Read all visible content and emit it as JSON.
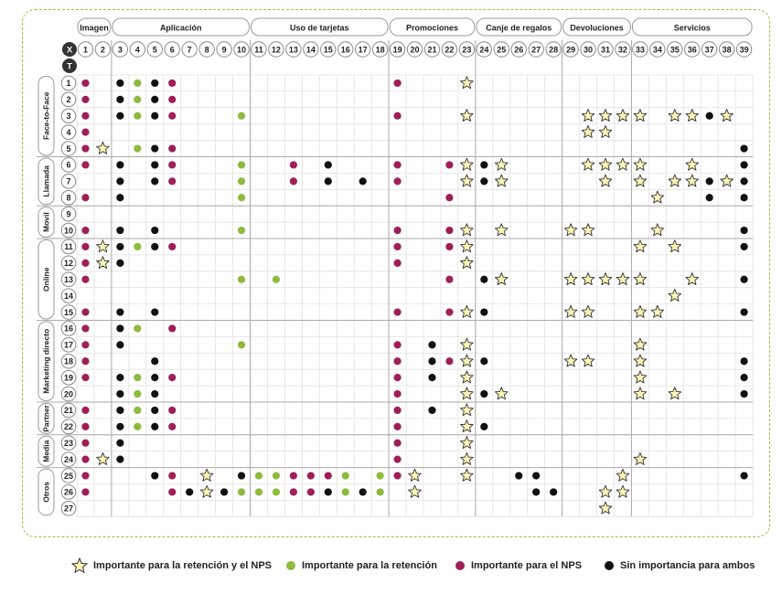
{
  "groups": [
    {
      "label": "Imagen",
      "from": 1,
      "to": 2
    },
    {
      "label": "Aplicación",
      "from": 3,
      "to": 10
    },
    {
      "label": "Uso de tarjetas",
      "from": 11,
      "to": 18
    },
    {
      "label": "Promociones",
      "from": 19,
      "to": 23
    },
    {
      "label": "Canje de regalos",
      "from": 24,
      "to": 28
    },
    {
      "label": "Devoluciones",
      "from": 29,
      "to": 32
    },
    {
      "label": "Servicios",
      "from": 33,
      "to": 39
    }
  ],
  "axis_labels": {
    "x": "X",
    "t": "T"
  },
  "columns": [
    "1",
    "2",
    "3",
    "4",
    "5",
    "6",
    "7",
    "8",
    "9",
    "10",
    "11",
    "12",
    "13",
    "14",
    "15",
    "16",
    "17",
    "18",
    "19",
    "20",
    "21",
    "22",
    "23",
    "24",
    "25",
    "26",
    "27",
    "28",
    "29",
    "30",
    "31",
    "32",
    "33",
    "34",
    "35",
    "36",
    "37",
    "38",
    "39"
  ],
  "channels": [
    {
      "label": "Face-to-Face",
      "from": 1,
      "to": 5
    },
    {
      "label": "Llamada",
      "from": 6,
      "to": 8
    },
    {
      "label": "Movil",
      "from": 9,
      "to": 10
    },
    {
      "label": "Online",
      "from": 11,
      "to": 15
    },
    {
      "label": "Marketing directo",
      "from": 16,
      "to": 20
    },
    {
      "label": "Partner",
      "from": 21,
      "to": 22
    },
    {
      "label": "Media",
      "from": 23,
      "to": 24
    },
    {
      "label": "Otros",
      "from": 25,
      "to": 27
    }
  ],
  "rows": [
    "1",
    "2",
    "3",
    "4",
    "5",
    "6",
    "7",
    "8",
    "9",
    "10",
    "11",
    "12",
    "13",
    "14",
    "15",
    "16",
    "17",
    "18",
    "19",
    "20",
    "21",
    "22",
    "23",
    "24",
    "25",
    "26",
    "27"
  ],
  "marker_colors": {
    "star": "#fdf5b5",
    "star_stroke": "#333333",
    "retention": "#8dba3f",
    "nps": "#9e1f58",
    "none": "#111111",
    "green_border": "#8dc63f"
  },
  "legend": [
    {
      "type": "star",
      "label": "Importante para la retención y el NPS"
    },
    {
      "type": "retention",
      "label": "Importante para la retención"
    },
    {
      "type": "nps",
      "label": "Importante para el NPS"
    },
    {
      "type": "none",
      "label": "Sin importancia para ambos"
    }
  ],
  "chart_data": {
    "type": "table",
    "marker_codes": {
      "S": "Importante para la retención y el NPS",
      "G": "Importante para la retención",
      "R": "Importante para el NPS",
      "B": "Sin importancia para ambos"
    },
    "cells": {
      "1": {
        "1": "R",
        "3": "B",
        "4": "G",
        "5": "B",
        "6": "R",
        "19": "R",
        "23": "S"
      },
      "2": {
        "1": "R",
        "3": "B",
        "4": "G",
        "5": "B",
        "6": "R"
      },
      "3": {
        "1": "R",
        "3": "B",
        "4": "G",
        "5": "B",
        "6": "R",
        "10": "G",
        "19": "R",
        "23": "S",
        "30": "S",
        "31": "S",
        "32": "S",
        "33": "S",
        "35": "S",
        "36": "S",
        "37": "B",
        "38": "S"
      },
      "4": {
        "1": "R",
        "30": "S",
        "31": "S"
      },
      "5": {
        "1": "R",
        "2": "S",
        "4": "G",
        "5": "B",
        "6": "R",
        "39": "B"
      },
      "6": {
        "1": "R",
        "3": "B",
        "5": "B",
        "6": "R",
        "10": "G",
        "13": "R",
        "15": "B",
        "19": "R",
        "22": "R",
        "23": "S",
        "24": "B",
        "25": "S",
        "30": "S",
        "31": "S",
        "32": "S",
        "33": "S",
        "36": "S",
        "39": "B"
      },
      "7": {
        "3": "B",
        "5": "B",
        "6": "R",
        "10": "G",
        "13": "R",
        "15": "B",
        "17": "B",
        "19": "R",
        "23": "S",
        "24": "B",
        "25": "S",
        "31": "S",
        "33": "S",
        "35": "S",
        "36": "S",
        "37": "B",
        "38": "S",
        "39": "B"
      },
      "8": {
        "1": "R",
        "3": "B",
        "10": "G",
        "22": "R",
        "34": "S",
        "37": "B",
        "39": "B"
      },
      "9": {},
      "10": {
        "1": "R",
        "3": "B",
        "5": "B",
        "10": "G",
        "19": "R",
        "22": "R",
        "23": "S",
        "25": "S",
        "29": "S",
        "30": "S",
        "34": "S",
        "39": "B"
      },
      "11": {
        "1": "R",
        "2": "S",
        "3": "B",
        "4": "G",
        "5": "B",
        "6": "R",
        "19": "R",
        "22": "R",
        "23": "S",
        "33": "S",
        "35": "S",
        "39": "B"
      },
      "12": {
        "1": "R",
        "2": "S",
        "3": "B",
        "19": "R",
        "23": "S"
      },
      "13": {
        "1": "R",
        "10": "G",
        "12": "G",
        "22": "R",
        "24": "B",
        "25": "S",
        "29": "S",
        "30": "S",
        "31": "S",
        "32": "S",
        "33": "S",
        "36": "S",
        "39": "B"
      },
      "14": {
        "35": "S"
      },
      "15": {
        "1": "R",
        "3": "B",
        "5": "B",
        "19": "R",
        "22": "R",
        "23": "S",
        "24": "B",
        "29": "S",
        "30": "S",
        "33": "S",
        "34": "S",
        "39": "B"
      },
      "16": {
        "1": "R",
        "3": "B",
        "4": "G",
        "6": "R"
      },
      "17": {
        "1": "R",
        "3": "B",
        "10": "G",
        "19": "R",
        "21": "B",
        "23": "S",
        "33": "S"
      },
      "18": {
        "1": "R",
        "5": "B",
        "19": "R",
        "21": "B",
        "22": "R",
        "23": "S",
        "24": "B",
        "29": "S",
        "30": "S",
        "33": "S",
        "39": "B"
      },
      "19": {
        "1": "R",
        "3": "B",
        "4": "G",
        "5": "B",
        "6": "R",
        "19": "R",
        "21": "B",
        "23": "S",
        "33": "S",
        "39": "B"
      },
      "20": {
        "3": "B",
        "4": "G",
        "5": "B",
        "19": "R",
        "23": "S",
        "24": "B",
        "25": "S",
        "33": "S",
        "35": "S",
        "39": "B"
      },
      "21": {
        "1": "R",
        "3": "B",
        "4": "G",
        "5": "B",
        "6": "R",
        "19": "R",
        "21": "B",
        "23": "S"
      },
      "22": {
        "1": "R",
        "3": "B",
        "4": "G",
        "5": "B",
        "6": "R",
        "19": "R",
        "23": "S",
        "24": "B"
      },
      "23": {
        "1": "R",
        "3": "B",
        "19": "R",
        "23": "S"
      },
      "24": {
        "1": "R",
        "2": "S",
        "3": "B",
        "19": "R",
        "23": "S",
        "33": "S"
      },
      "25": {
        "1": "R",
        "5": "B",
        "6": "R",
        "8": "S",
        "10": "B",
        "11": "G",
        "12": "G",
        "13": "R",
        "14": "R",
        "15": "R",
        "16": "G",
        "18": "G",
        "19": "R",
        "20": "S",
        "23": "S",
        "26": "B",
        "27": "B",
        "32": "S",
        "39": "B"
      },
      "26": {
        "1": "R",
        "6": "R",
        "7": "B",
        "8": "S",
        "9": "B",
        "10": "G",
        "11": "G",
        "12": "G",
        "13": "R",
        "14": "R",
        "15": "B",
        "16": "G",
        "17": "B",
        "18": "G",
        "20": "S",
        "27": "B",
        "28": "B",
        "31": "S",
        "32": "S"
      },
      "27": {
        "31": "S"
      }
    }
  }
}
